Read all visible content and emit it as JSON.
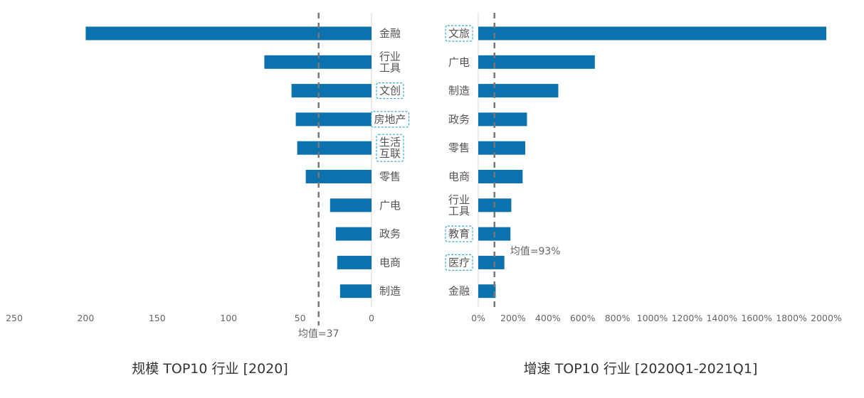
{
  "chart_data": [
    {
      "type": "bar",
      "orientation": "horizontal",
      "direction": "right-to-left",
      "title": "规模 TOP10 行业 [2020]",
      "categories": [
        [
          "金融"
        ],
        [
          "行业",
          "工具"
        ],
        [
          "文创"
        ],
        [
          "房地产"
        ],
        [
          "生活",
          "互联"
        ],
        [
          "零售"
        ],
        [
          "广电"
        ],
        [
          "政务"
        ],
        [
          "电商"
        ],
        [
          "制造"
        ]
      ],
      "highlighted": [
        false,
        false,
        true,
        true,
        true,
        false,
        false,
        false,
        false,
        false
      ],
      "values": [
        200,
        75,
        56,
        53,
        52,
        46,
        29,
        25,
        24,
        22
      ],
      "xlim": [
        0,
        250
      ],
      "xticks": [
        250,
        200,
        150,
        100,
        50,
        0
      ],
      "xtick_labels": [
        "250",
        "200",
        "150",
        "100",
        "50",
        "0"
      ],
      "mean_value": 37,
      "mean_label": "均值=37"
    },
    {
      "type": "bar",
      "orientation": "horizontal",
      "direction": "left-to-right",
      "title": "增速 TOP10 行业 [2020Q1-2021Q1]",
      "categories": [
        [
          "文旅"
        ],
        [
          "广电"
        ],
        [
          "制造"
        ],
        [
          "政务"
        ],
        [
          "零售"
        ],
        [
          "电商"
        ],
        [
          "行业",
          "工具"
        ],
        [
          "教育"
        ],
        [
          "医疗"
        ],
        [
          "金融"
        ]
      ],
      "highlighted": [
        true,
        false,
        false,
        false,
        false,
        false,
        false,
        true,
        true,
        false
      ],
      "values": [
        2000,
        670,
        460,
        280,
        270,
        255,
        190,
        185,
        150,
        100
      ],
      "xlim": [
        0,
        2000
      ],
      "xticks": [
        0,
        200,
        400,
        600,
        800,
        1000,
        1200,
        1400,
        1600,
        1800,
        2000
      ],
      "xtick_labels": [
        "0%",
        "200%",
        "400%",
        "600%",
        "800%",
        "1000%",
        "1200%",
        "1400%",
        "1600%",
        "1800%",
        "2000%"
      ],
      "mean_value": 93,
      "mean_label": "均值=93%"
    }
  ],
  "colors": {
    "bar": "#0b72ad",
    "highlight_box": "#39a9d6",
    "mean_line": "#777777",
    "axis_line": "#d9d9d9"
  }
}
